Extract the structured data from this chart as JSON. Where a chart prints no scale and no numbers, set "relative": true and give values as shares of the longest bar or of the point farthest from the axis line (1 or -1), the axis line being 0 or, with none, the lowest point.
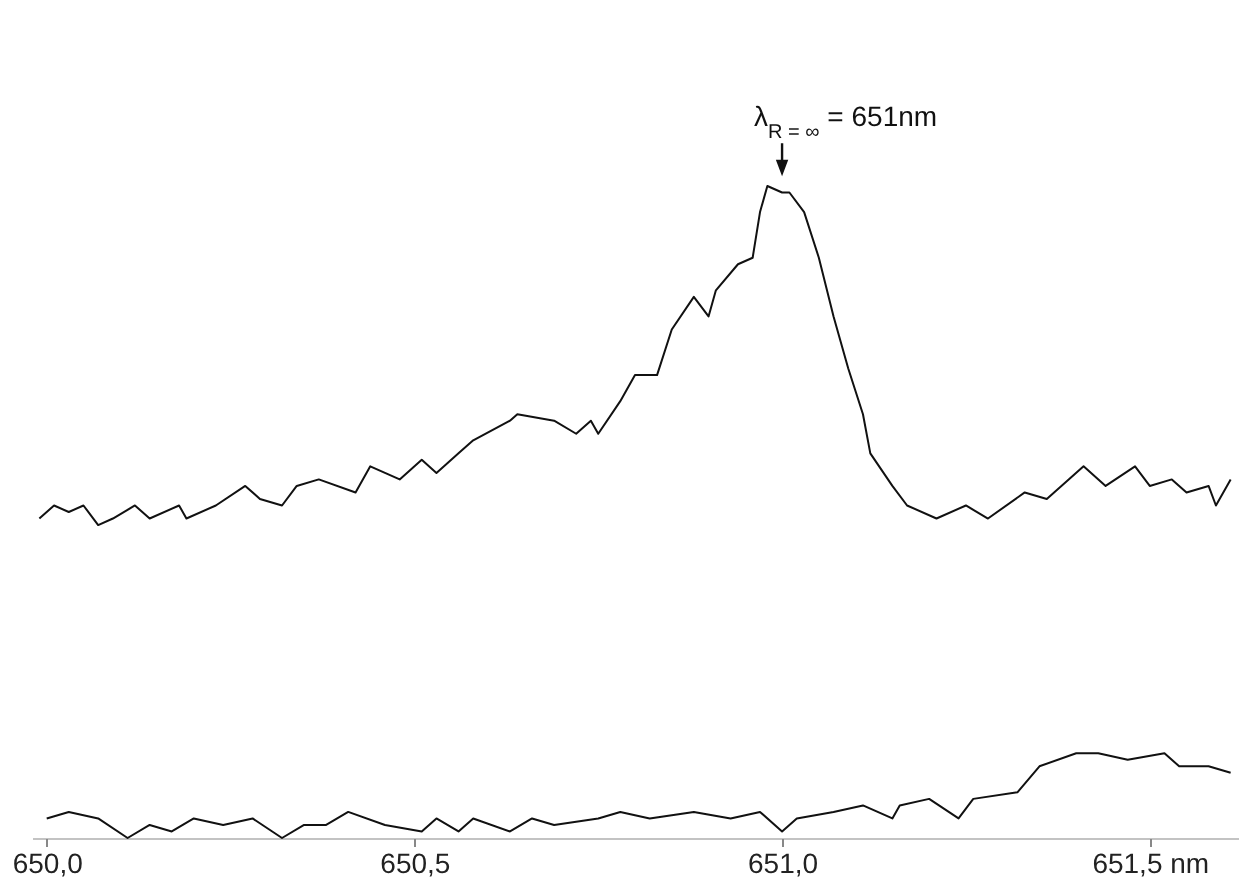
{
  "chart_data": {
    "type": "line",
    "relative": true,
    "xlim": [
      649.98,
      651.62
    ],
    "xticks": [
      {
        "value": 650.0,
        "label": "650,0"
      },
      {
        "value": 650.5,
        "label": "650,5"
      },
      {
        "value": 651.0,
        "label": "651,0"
      },
      {
        "value": 651.5,
        "label": "651,5 nm"
      }
    ],
    "series": [
      {
        "type": "line",
        "color": "#111111",
        "x": [
          649.99,
          650.01,
          650.03,
          650.05,
          650.07,
          650.09,
          650.12,
          650.14,
          650.18,
          650.19,
          650.23,
          650.27,
          650.29,
          650.32,
          650.34,
          650.37,
          650.42,
          650.44,
          650.48,
          650.51,
          650.53,
          650.56,
          650.58,
          650.63,
          650.64,
          650.69,
          650.72,
          650.74,
          650.75,
          650.78,
          650.8,
          650.83,
          650.85,
          650.88,
          650.9,
          650.91,
          650.94,
          650.96,
          650.97,
          650.98,
          651.0,
          651.01,
          651.03,
          651.05,
          651.07,
          651.09,
          651.11,
          651.12,
          651.15,
          651.17,
          651.21,
          651.25,
          651.28,
          651.33,
          651.36,
          651.41,
          651.44,
          651.48,
          651.5,
          651.53,
          651.55,
          651.58,
          651.59,
          651.61
        ],
        "values": [
          0.49,
          0.51,
          0.5,
          0.51,
          0.48,
          0.49,
          0.51,
          0.49,
          0.51,
          0.49,
          0.51,
          0.54,
          0.52,
          0.51,
          0.54,
          0.55,
          0.53,
          0.57,
          0.55,
          0.58,
          0.56,
          0.59,
          0.61,
          0.64,
          0.65,
          0.64,
          0.62,
          0.64,
          0.62,
          0.67,
          0.71,
          0.71,
          0.78,
          0.83,
          0.8,
          0.84,
          0.88,
          0.89,
          0.96,
          1,
          0.99,
          0.99,
          0.96,
          0.89,
          0.8,
          0.72,
          0.65,
          0.59,
          0.54,
          0.51,
          0.49,
          0.51,
          0.49,
          0.53,
          0.52,
          0.57,
          0.54,
          0.57,
          0.54,
          0.55,
          0.53,
          0.54,
          0.51,
          0.55
        ]
      },
      {
        "type": "line",
        "color": "#111111",
        "x": [
          650.0,
          650.03,
          650.07,
          650.11,
          650.14,
          650.17,
          650.2,
          650.24,
          650.28,
          650.32,
          650.35,
          650.38,
          650.41,
          650.46,
          650.51,
          650.53,
          650.56,
          650.58,
          650.63,
          650.66,
          650.69,
          650.75,
          650.78,
          650.82,
          650.88,
          650.93,
          650.97,
          651.0,
          651.02,
          651.07,
          651.11,
          651.15,
          651.16,
          651.2,
          651.24,
          651.26,
          651.32,
          651.35,
          651.4,
          651.43,
          651.47,
          651.52,
          651.54,
          651.58,
          651.61
        ],
        "values": [
          0.03,
          0.04,
          0.03,
          0.0,
          0.02,
          0.01,
          0.03,
          0.02,
          0.03,
          0.0,
          0.02,
          0.02,
          0.04,
          0.02,
          0.01,
          0.03,
          0.01,
          0.03,
          0.01,
          0.03,
          0.02,
          0.03,
          0.04,
          0.03,
          0.04,
          0.03,
          0.04,
          0.01,
          0.03,
          0.04,
          0.05,
          0.03,
          0.05,
          0.06,
          0.03,
          0.06,
          0.07,
          0.11,
          0.13,
          0.13,
          0.12,
          0.13,
          0.11,
          0.11,
          0.1
        ]
      }
    ],
    "annotations": [
      {
        "text": "λ$_{R = ∞}$ = 651nm",
        "x": 651.0,
        "y": 1
      }
    ]
  }
}
